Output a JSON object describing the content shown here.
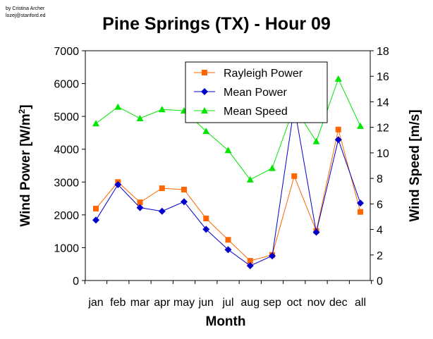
{
  "credit": {
    "line1": "by Cristina Archer",
    "line2": "lozej@stanford.ed"
  },
  "chart_data": {
    "type": "line",
    "title": "Pine Springs (TX) - Hour 09",
    "xlabel": "Month",
    "ylabel_left": "Wind Power [W/m",
    "ylabel_left_sup": "2",
    "ylabel_left_end": "]",
    "ylabel_right": "Wind Speed [m/s]",
    "categories": [
      "jan",
      "feb",
      "mar",
      "apr",
      "may",
      "jun",
      "jul",
      "aug",
      "sep",
      "oct",
      "nov",
      "dec",
      "all"
    ],
    "y_left": {
      "min": 0,
      "max": 7000,
      "ticks": [
        0,
        1000,
        2000,
        3000,
        4000,
        5000,
        6000,
        7000
      ]
    },
    "y_right": {
      "min": 0,
      "max": 18,
      "ticks": [
        0,
        2,
        4,
        6,
        8,
        10,
        12,
        14,
        16,
        18
      ]
    },
    "grid": false,
    "legend_position": "top-right",
    "series": [
      {
        "name": "Rayleigh Power",
        "axis": "left",
        "color": "#ff6600",
        "marker": "square",
        "values": [
          2190,
          3000,
          2380,
          2810,
          2770,
          1890,
          1240,
          600,
          780,
          3180,
          1510,
          4600,
          2090
        ]
      },
      {
        "name": "Mean Power",
        "axis": "left",
        "color": "#0000cc",
        "marker": "diamond",
        "values": [
          1840,
          2920,
          2220,
          2110,
          2400,
          1560,
          940,
          450,
          750,
          5300,
          1470,
          4290,
          2360
        ]
      },
      {
        "name": "Mean Speed",
        "axis": "right",
        "color": "#00e600",
        "marker": "triangle",
        "values": [
          12.3,
          13.6,
          12.7,
          13.4,
          13.3,
          11.7,
          10.2,
          7.9,
          8.8,
          13.6,
          10.9,
          15.8,
          12.1
        ]
      }
    ]
  }
}
